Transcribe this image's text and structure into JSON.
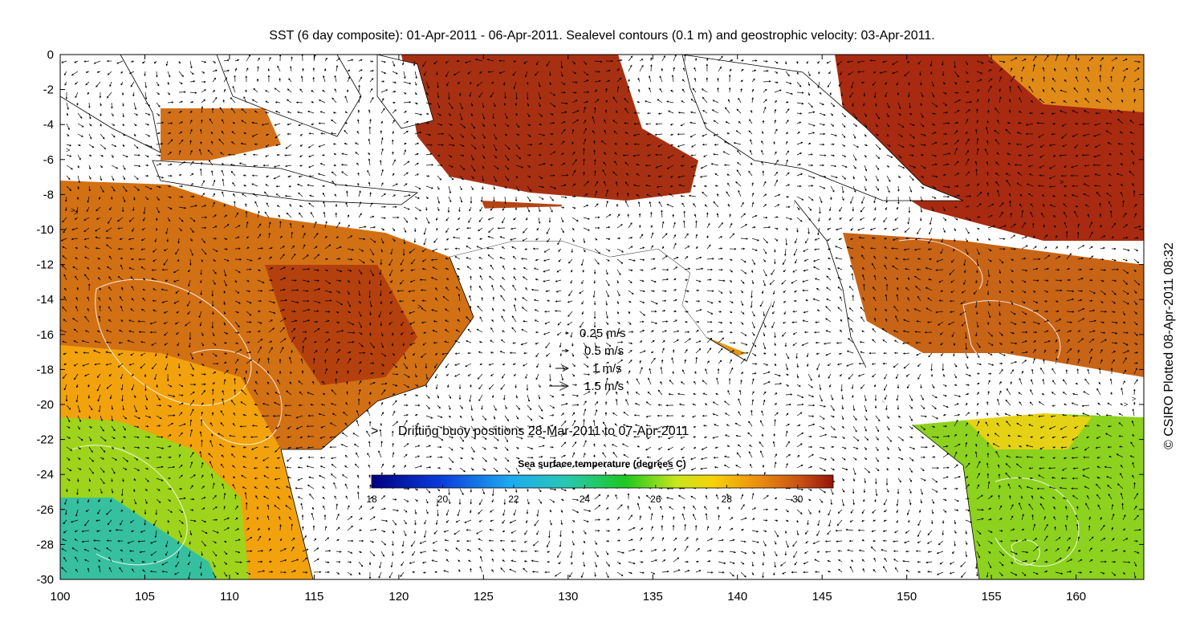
{
  "title": "SST (6 day composite): 01-Apr-2011 - 06-Apr-2011. Sealevel contours (0.1 m) and geostrophic velocity: 03-Apr-2011.",
  "credit": "© CSIRO Plotted 08-Apr-2011 08:32",
  "map": {
    "x_range": [
      100,
      164
    ],
    "y_range": [
      -30,
      0
    ],
    "x_ticks": [
      100,
      105,
      110,
      115,
      120,
      125,
      130,
      135,
      140,
      145,
      150,
      155,
      160
    ],
    "y_ticks": [
      0,
      -2,
      -4,
      -6,
      -8,
      -10,
      -12,
      -14,
      -16,
      -18,
      -20,
      -22,
      -24,
      -26,
      -28,
      -30
    ],
    "x_tick_labels": [
      "100",
      "105",
      "110",
      "115",
      "120",
      "125",
      "130",
      "135",
      "140",
      "145",
      "150",
      "155",
      "160"
    ],
    "y_tick_labels": [
      "0",
      "-2",
      "-4",
      "-6",
      "-8",
      "-10",
      "-12",
      "-14",
      "-16",
      "-18",
      "-20",
      "-22",
      "-24",
      "-26",
      "-28",
      "-30"
    ]
  },
  "velocity_legend": {
    "entries": [
      {
        "label": "0.25 m/s",
        "speed": 0.25
      },
      {
        "label": "0.5 m/s",
        "speed": 0.5
      },
      {
        "label": "1 m/s",
        "speed": 1
      },
      {
        "label": "1.5 m/s",
        "speed": 1.5
      }
    ]
  },
  "buoy_legend": {
    "symbol": ">",
    "label": "Drifting buoy positions 28-Mar-2011 to 07-Apr-2011",
    "color": "#ff33cc"
  },
  "colorbar": {
    "title": "Sea surface temperature (degrees C)",
    "min": 18,
    "max": 31,
    "tick_values": [
      18,
      20,
      22,
      24,
      26,
      28,
      30
    ],
    "tick_labels": [
      "18",
      "20",
      "22",
      "24",
      "26",
      "28",
      "30"
    ]
  },
  "colors": {
    "warm": "#c65a12",
    "hot": "#a0230f",
    "mid": "#f0a010",
    "cool": "#8cd21e",
    "cold": "#2ab6b4",
    "contour": "#ffffff",
    "coast": "#000000"
  }
}
